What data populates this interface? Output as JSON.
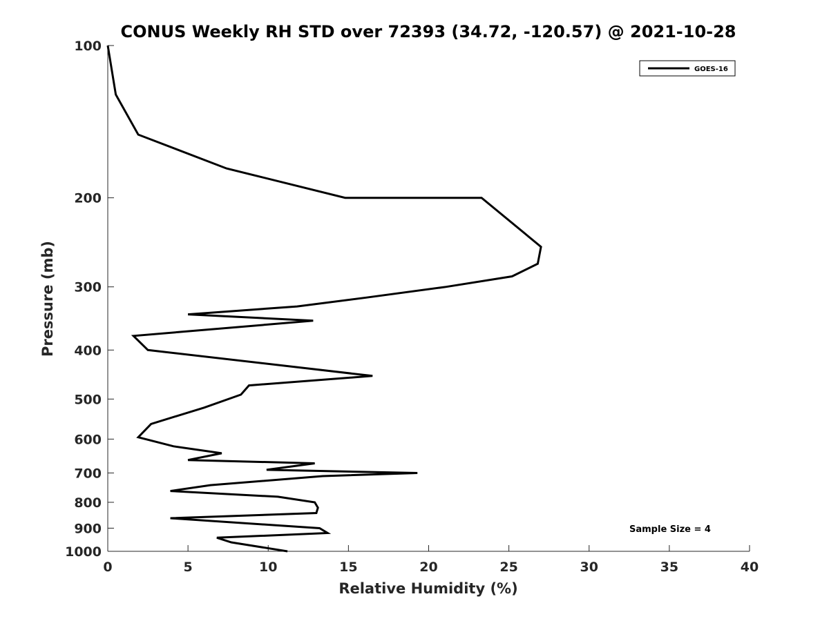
{
  "chart_data": {
    "type": "line",
    "title": "CONUS Weekly RH STD over 72393 (34.72, -120.57) @ 2021-10-28",
    "xlabel": "Relative Humidity (%)",
    "ylabel": "Pressure (mb)",
    "xlim": [
      0,
      40
    ],
    "ylim": [
      100,
      1000
    ],
    "yscale": "log",
    "y_reversed": true,
    "grid": false,
    "x_ticks": [
      0,
      5,
      10,
      15,
      20,
      25,
      30,
      35,
      40
    ],
    "y_ticks": [
      100,
      200,
      300,
      400,
      500,
      600,
      700,
      800,
      900,
      1000
    ],
    "legend": {
      "position": "top-right",
      "entries": [
        "GOES-16"
      ]
    },
    "annotation": "Sample Size = 4",
    "series": [
      {
        "name": "GOES-16",
        "color": "#000000",
        "points": [
          [
            0.0,
            100
          ],
          [
            0.5,
            125
          ],
          [
            1.9,
            150
          ],
          [
            7.4,
            175
          ],
          [
            14.8,
            200
          ],
          [
            23.3,
            200
          ],
          [
            27.0,
            250
          ],
          [
            26.8,
            270
          ],
          [
            25.2,
            286
          ],
          [
            21.1,
            300
          ],
          [
            16.1,
            315
          ],
          [
            11.8,
            328
          ],
          [
            5.0,
            340
          ],
          [
            12.8,
            350
          ],
          [
            1.6,
            375
          ],
          [
            2.5,
            400
          ],
          [
            16.5,
            450
          ],
          [
            8.8,
            470
          ],
          [
            8.3,
            490
          ],
          [
            6.0,
            520
          ],
          [
            2.7,
            560
          ],
          [
            1.9,
            595
          ],
          [
            4.1,
            620
          ],
          [
            7.1,
            640
          ],
          [
            5.0,
            660
          ],
          [
            12.9,
            670
          ],
          [
            9.9,
            690
          ],
          [
            19.3,
            700
          ],
          [
            13.4,
            710
          ],
          [
            6.4,
            740
          ],
          [
            3.9,
            760
          ],
          [
            10.6,
            780
          ],
          [
            12.9,
            800
          ],
          [
            13.1,
            820
          ],
          [
            13.0,
            840
          ],
          [
            3.9,
            860
          ],
          [
            13.2,
            900
          ],
          [
            13.7,
            920
          ],
          [
            6.8,
            940
          ],
          [
            7.7,
            960
          ],
          [
            11.2,
            1000
          ]
        ]
      }
    ]
  }
}
